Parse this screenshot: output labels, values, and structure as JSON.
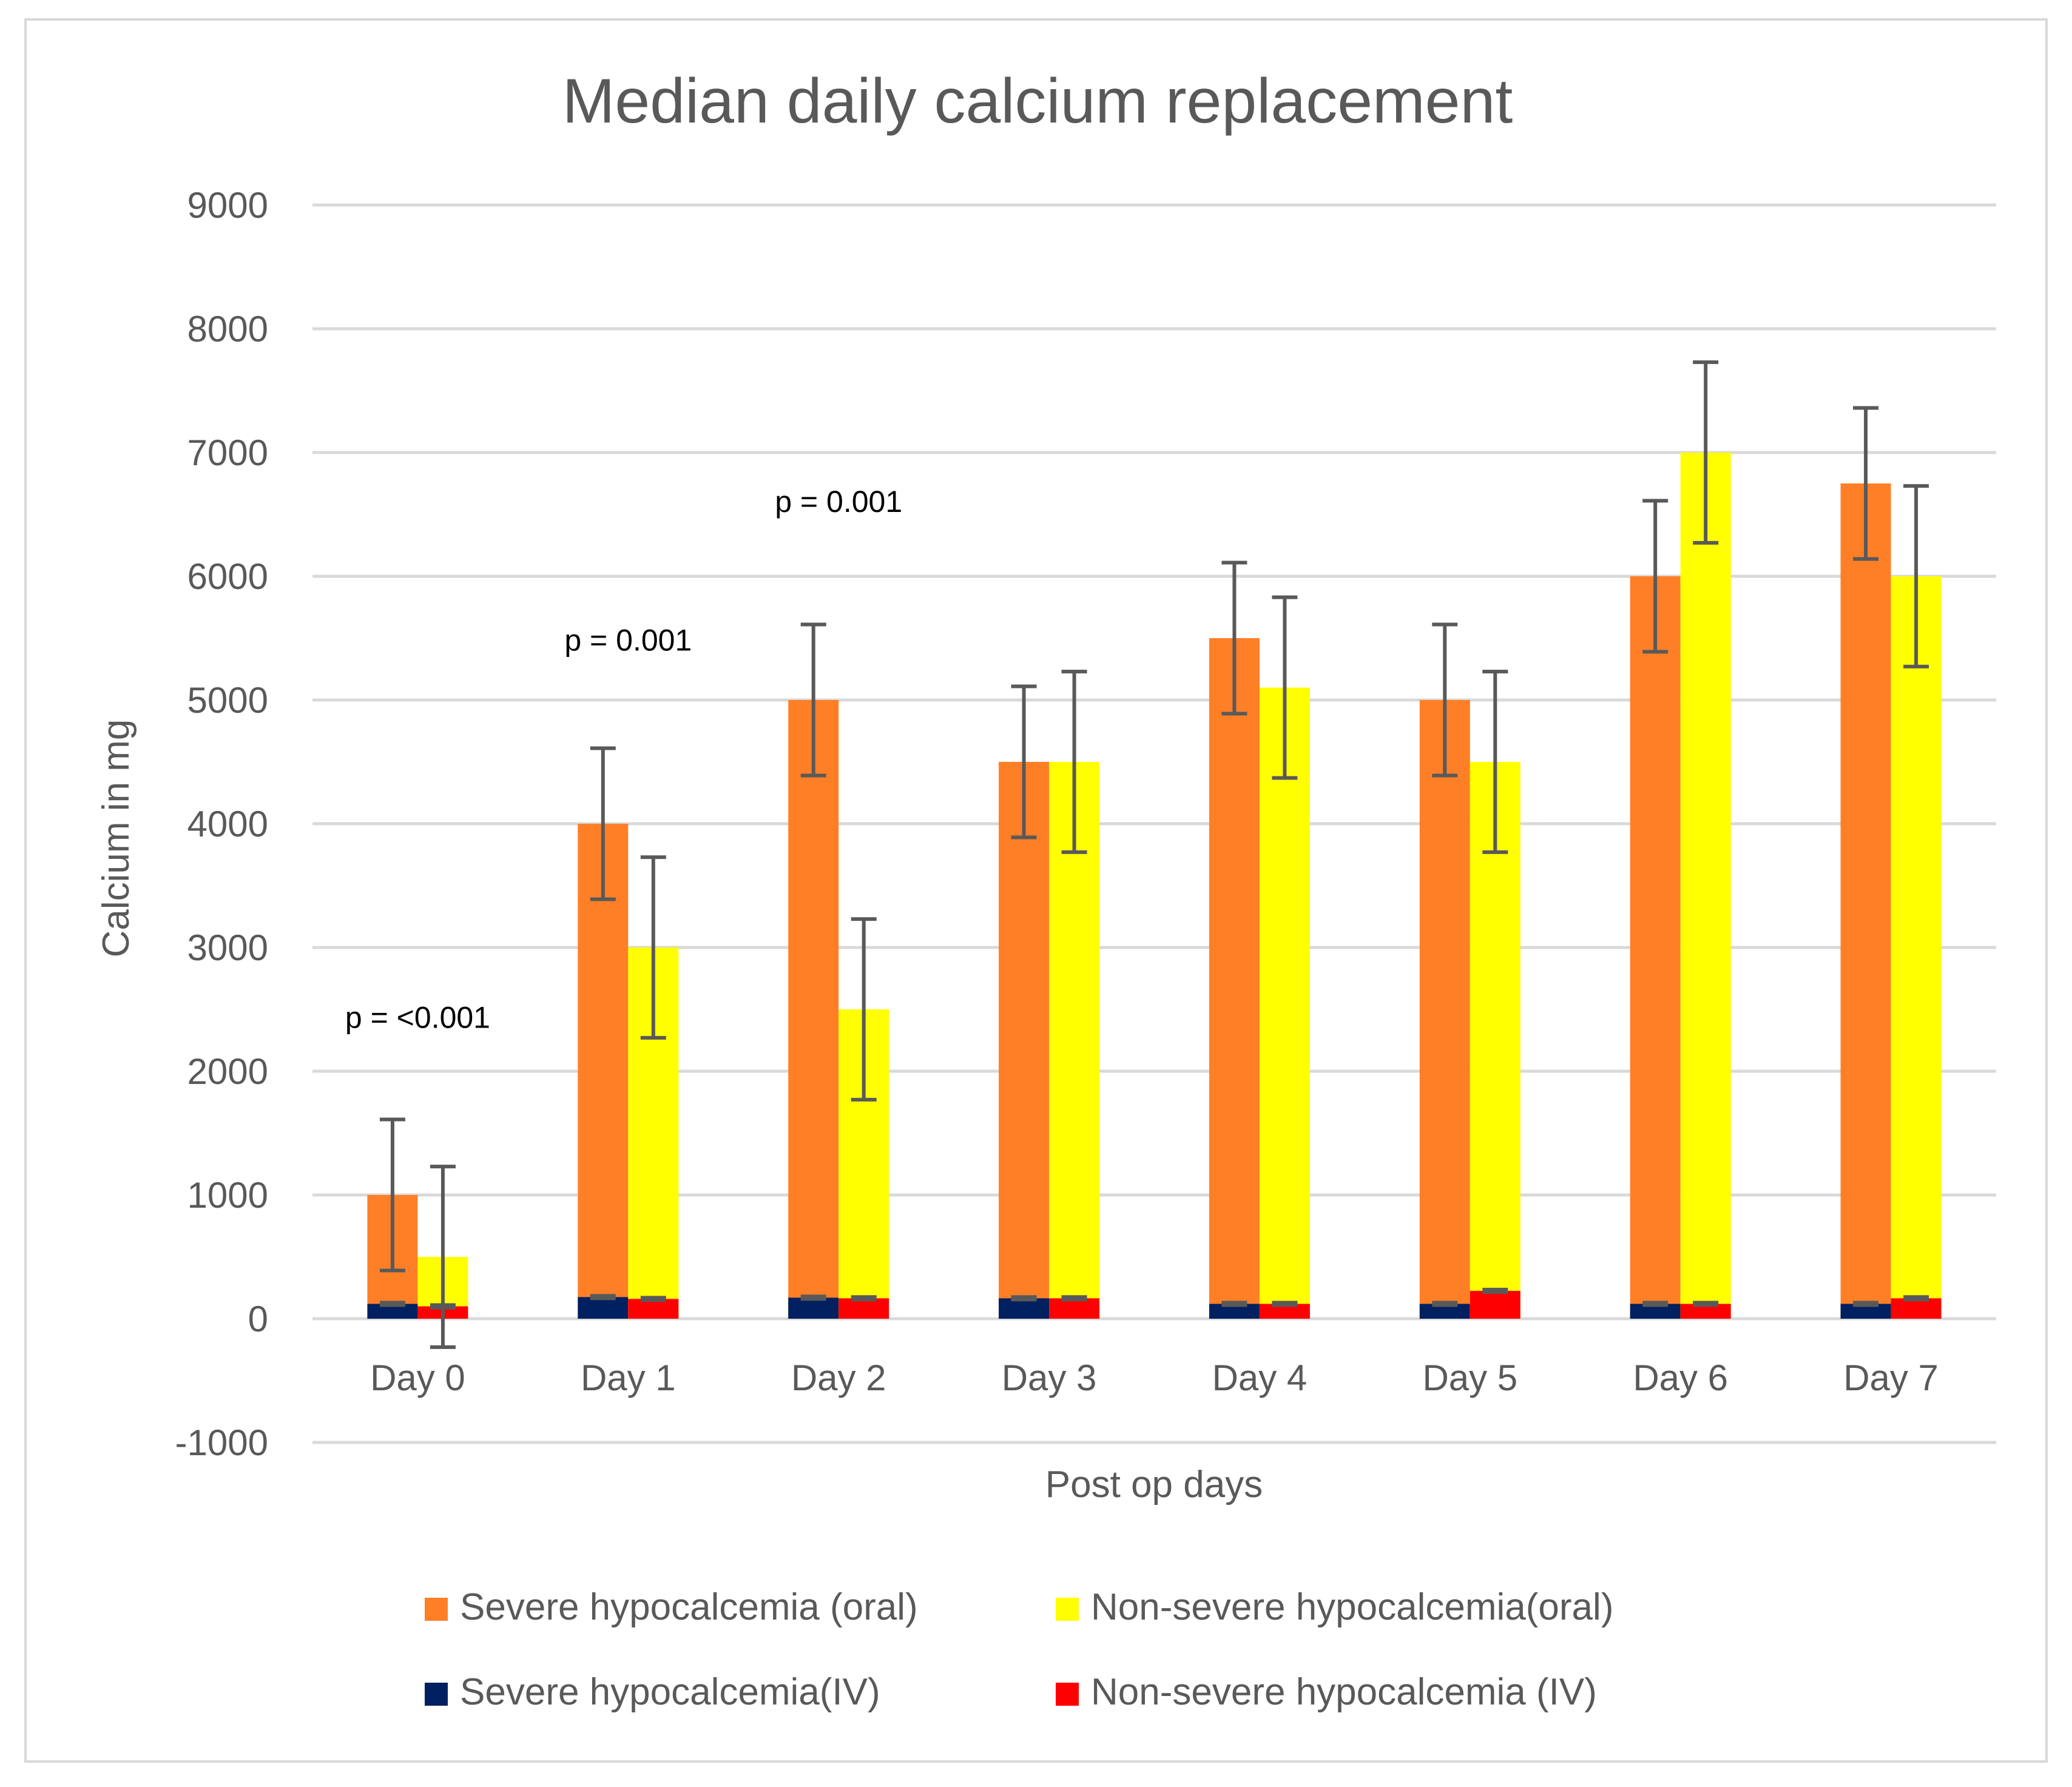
{
  "chart_data": {
    "type": "bar",
    "title": "Median daily calcium replacement",
    "xlabel": "Post op days",
    "ylabel": "Calcium in mg",
    "ylim": [
      -1000,
      9000
    ],
    "yticks": [
      -1000,
      0,
      1000,
      2000,
      3000,
      4000,
      5000,
      6000,
      7000,
      8000,
      9000
    ],
    "grid": true,
    "legend_position": "bottom",
    "categories": [
      "Day 0",
      "Day 1",
      "Day 2",
      "Day 3",
      "Day 4",
      "Day 5",
      "Day 6",
      "Day 7"
    ],
    "series": [
      {
        "name": "Severe hypocalcemia (oral)",
        "group": "severe",
        "layer": "oral",
        "color": "#FF7F27",
        "values": [
          1000,
          4000,
          5000,
          4500,
          5500,
          5000,
          6000,
          6750
        ],
        "error": [
          610,
          610,
          610,
          610,
          610,
          610,
          610,
          610
        ]
      },
      {
        "name": "Non-severe hypocalcemia(oral)",
        "group": "nonsevere",
        "layer": "oral",
        "color": "#FFFF00",
        "values": [
          500,
          3000,
          2500,
          4500,
          5100,
          4500,
          7000,
          6000
        ],
        "error": [
          730,
          730,
          730,
          730,
          730,
          730,
          730,
          730
        ]
      },
      {
        "name": "Severe hypocalcemia(IV)",
        "group": "severe",
        "layer": "iv",
        "color": "#002060",
        "values": [
          120,
          175,
          170,
          165,
          120,
          120,
          120,
          120
        ],
        "error": [
          10,
          10,
          10,
          10,
          10,
          10,
          10,
          10
        ]
      },
      {
        "name": "Non-severe hypocalcemia (IV)",
        "group": "nonsevere",
        "layer": "iv",
        "color": "#FF0000",
        "values": [
          100,
          160,
          165,
          165,
          120,
          225,
          120,
          165
        ],
        "error": [
          10,
          10,
          10,
          10,
          10,
          10,
          10,
          10
        ]
      }
    ],
    "annotations": [
      {
        "text": "p = <0.001",
        "x": "Day 0",
        "y": 2350
      },
      {
        "text": "p = 0.001",
        "x": "Day 1",
        "y": 5400
      },
      {
        "text": "p = 0.001",
        "x": "Day 2",
        "y": 6520
      }
    ]
  }
}
